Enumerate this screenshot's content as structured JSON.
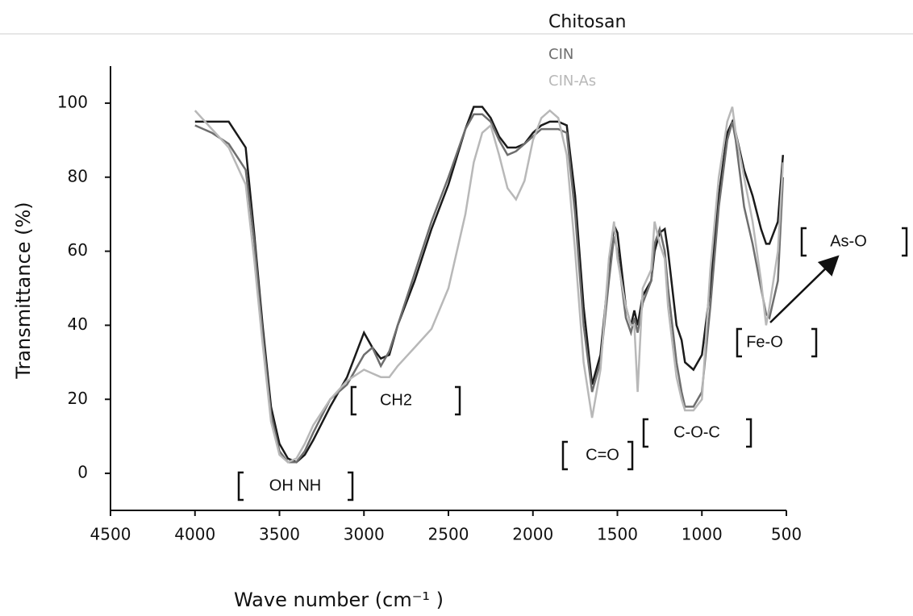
{
  "chart_data": {
    "type": "line",
    "x_label": "Wave number (cm⁻¹ )",
    "y_label": "Transmittance (%)",
    "xlim": [
      4500,
      500
    ],
    "xticks": [
      4500,
      4000,
      3500,
      3000,
      2500,
      2000,
      1500,
      1000,
      500
    ],
    "ylim": [
      -10,
      110
    ],
    "yticks": [
      0,
      20,
      40,
      60,
      80,
      100
    ],
    "x": [
      4000,
      3900,
      3800,
      3700,
      3650,
      3600,
      3550,
      3500,
      3450,
      3400,
      3350,
      3300,
      3200,
      3100,
      3000,
      2950,
      2900,
      2850,
      2800,
      2700,
      2600,
      2500,
      2400,
      2350,
      2300,
      2250,
      2200,
      2150,
      2100,
      2050,
      2000,
      1950,
      1900,
      1850,
      1800,
      1750,
      1700,
      1650,
      1600,
      1550,
      1520,
      1500,
      1450,
      1420,
      1400,
      1380,
      1350,
      1300,
      1280,
      1250,
      1220,
      1200,
      1150,
      1120,
      1100,
      1050,
      1000,
      950,
      900,
      850,
      820,
      800,
      750,
      700,
      650,
      620,
      600,
      550,
      520
    ],
    "series": [
      {
        "name": "Chitosan",
        "color": "#1a1a1a",
        "values": [
          95,
          95,
          95,
          88,
          65,
          40,
          18,
          8,
          4,
          3,
          5,
          9,
          18,
          26,
          38,
          34,
          31,
          32,
          40,
          52,
          66,
          78,
          93,
          99,
          99,
          96,
          91,
          88,
          88,
          89,
          92,
          94,
          95,
          95,
          94,
          75,
          45,
          24,
          32,
          55,
          67,
          65,
          45,
          40,
          44,
          40,
          48,
          52,
          60,
          65,
          66,
          60,
          40,
          36,
          30,
          28,
          32,
          50,
          75,
          92,
          95,
          92,
          82,
          75,
          66,
          62,
          62,
          68,
          86
        ]
      },
      {
        "name": "CIN",
        "color": "#6e6e6e",
        "values": [
          94,
          92,
          89,
          82,
          63,
          38,
          16,
          6,
          3,
          3,
          6,
          11,
          20,
          24,
          32,
          34,
          29,
          33,
          40,
          54,
          68,
          80,
          93,
          97,
          97,
          95,
          90,
          86,
          87,
          89,
          91,
          93,
          93,
          93,
          92,
          70,
          40,
          22,
          30,
          52,
          64,
          60,
          42,
          38,
          42,
          38,
          46,
          52,
          62,
          66,
          60,
          50,
          30,
          22,
          18,
          18,
          22,
          45,
          72,
          90,
          95,
          90,
          72,
          62,
          50,
          43,
          42,
          52,
          80
        ]
      },
      {
        "name": "CIN-As",
        "color": "#b8b8b8",
        "values": [
          98,
          93,
          88,
          78,
          58,
          35,
          14,
          5,
          3,
          4,
          8,
          13,
          20,
          25,
          28,
          27,
          26,
          26,
          29,
          34,
          39,
          50,
          70,
          84,
          92,
          94,
          86,
          77,
          74,
          79,
          90,
          96,
          98,
          96,
          86,
          60,
          30,
          15,
          28,
          58,
          68,
          58,
          45,
          40,
          40,
          22,
          50,
          55,
          68,
          62,
          58,
          45,
          26,
          20,
          17,
          17,
          20,
          55,
          80,
          95,
          99,
          92,
          80,
          68,
          52,
          40,
          45,
          60,
          84
        ]
      }
    ],
    "annotations": [
      "OH NH",
      "CH2",
      "C=O",
      "C-O-C",
      "Fe-O",
      "As-O"
    ]
  }
}
